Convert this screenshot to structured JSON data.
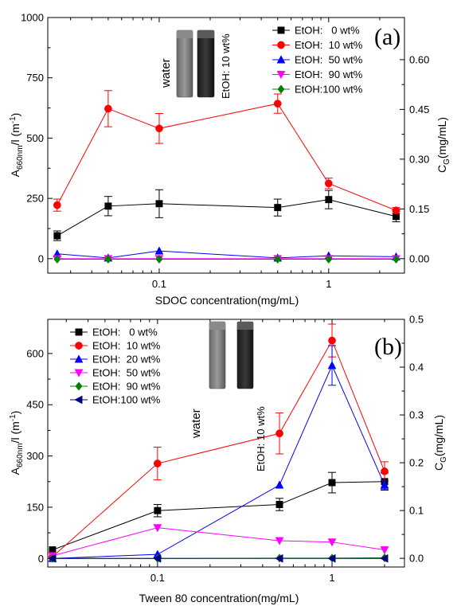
{
  "chart_data": [
    {
      "type": "line",
      "panel_label": "(a)",
      "xlabel": "SDOC concentration(mg/mL)",
      "ylabel_main": "A",
      "ylabel_sub": "660nm",
      "ylabel_rest": "/l (m",
      "ylabel_sup": "-1",
      "ylabel_close": ")",
      "ylabel_right_main": "C",
      "ylabel_right_sub": "G",
      "ylabel_right_rest": "(mg/mL)",
      "xscale": "log",
      "xlim": [
        0.022,
        2.8
      ],
      "ylim": [
        -60,
        1000
      ],
      "y2lim": [
        -0.0436,
        0.727
      ],
      "xticks": [
        {
          "v": 0.1,
          "label": "0.1"
        },
        {
          "v": 1,
          "label": "1"
        }
      ],
      "yticks": [
        {
          "v": 0,
          "label": "0"
        },
        {
          "v": 250,
          "label": "250"
        },
        {
          "v": 500,
          "label": "500"
        },
        {
          "v": 750,
          "label": "750"
        },
        {
          "v": 1000,
          "label": "1000"
        }
      ],
      "y2ticks": [
        {
          "v": 0,
          "label": "0.00"
        },
        {
          "v": 0.15,
          "label": "0.15"
        },
        {
          "v": 0.3,
          "label": "0.30"
        },
        {
          "v": 0.45,
          "label": "0.45"
        },
        {
          "v": 0.6,
          "label": "0.60"
        }
      ],
      "legend_position": "top-right",
      "inset": {
        "left_label": "water",
        "right_label": "EtOH: 10 wt%"
      },
      "x": [
        0.025,
        0.05,
        0.1,
        0.5,
        1,
        2.5
      ],
      "series": [
        {
          "name": "EtOH:   0 wt%",
          "color": "#000000",
          "marker": "square",
          "values": [
            95,
            218,
            228,
            212,
            245,
            175
          ],
          "errors": [
            20,
            40,
            58,
            35,
            38,
            22
          ]
        },
        {
          "name": "EtOH:  10 wt%",
          "color": "#ff0000",
          "marker": "circle",
          "values": [
            222,
            622,
            540,
            643,
            312,
            200
          ],
          "errors": [
            25,
            75,
            62,
            40,
            22,
            12
          ]
        },
        {
          "name": "EtOH:  50 wt%",
          "color": "#0000ff",
          "marker": "triangle-up",
          "values": [
            20,
            3,
            32,
            3,
            12,
            8
          ],
          "errors": [
            0,
            0,
            0,
            0,
            0,
            0
          ]
        },
        {
          "name": "EtOH:  90 wt%",
          "color": "#ff00ff",
          "marker": "triangle-down",
          "values": [
            0,
            0,
            0,
            0,
            0,
            0
          ],
          "errors": [
            0,
            0,
            0,
            0,
            0,
            0
          ]
        },
        {
          "name": "EtOH:100 wt%",
          "color": "#008000",
          "marker": "diamond",
          "values": [
            -2,
            -2,
            -2,
            -2,
            -2,
            -2
          ],
          "errors": [
            0,
            0,
            0,
            0,
            0,
            0
          ]
        }
      ]
    },
    {
      "type": "line",
      "panel_label": "(b)",
      "xlabel": "Tween 80 concentration(mg/mL)",
      "ylabel_main": "A",
      "ylabel_sub": "660nm",
      "ylabel_rest": "/l (m",
      "ylabel_sup": "-1",
      "ylabel_close": ")",
      "ylabel_right_main": "C",
      "ylabel_right_sub": "G",
      "ylabel_right_rest": "(mg/mL)",
      "xscale": "log",
      "xlim": [
        0.0235,
        2.6
      ],
      "ylim": [
        -25,
        700
      ],
      "y2lim": [
        -0.0181,
        0.5
      ],
      "xticks": [
        {
          "v": 0.1,
          "label": "0.1"
        },
        {
          "v": 1,
          "label": "1"
        }
      ],
      "yticks": [
        {
          "v": 0,
          "label": "0"
        },
        {
          "v": 150,
          "label": "150"
        },
        {
          "v": 300,
          "label": "300"
        },
        {
          "v": 450,
          "label": "450"
        },
        {
          "v": 600,
          "label": "600"
        }
      ],
      "y2ticks": [
        {
          "v": 0,
          "label": "0.0"
        },
        {
          "v": 0.1,
          "label": "0.1"
        },
        {
          "v": 0.2,
          "label": "0.2"
        },
        {
          "v": 0.3,
          "label": "0.3"
        },
        {
          "v": 0.4,
          "label": "0.4"
        },
        {
          "v": 0.5,
          "label": "0.5"
        }
      ],
      "legend_position": "top-left",
      "inset": {
        "left_label": "water",
        "right_label": "EtOH: 10 wt%"
      },
      "x": [
        0.025,
        0.1,
        0.5,
        1,
        2
      ],
      "series": [
        {
          "name": "EtOH:   0 wt%",
          "color": "#000000",
          "marker": "square",
          "values": [
            25,
            140,
            158,
            222,
            225
          ],
          "errors": [
            0,
            18,
            18,
            30,
            25
          ]
        },
        {
          "name": "EtOH:  10 wt%",
          "color": "#ff0000",
          "marker": "circle",
          "values": [
            5,
            278,
            366,
            638,
            255
          ],
          "errors": [
            0,
            48,
            60,
            48,
            28
          ]
        },
        {
          "name": "EtOH:  20 wt%",
          "color": "#0000ff",
          "marker": "triangle-up",
          "values": [
            0,
            12,
            215,
            565,
            215
          ],
          "errors": [
            0,
            0,
            0,
            58,
            12
          ]
        },
        {
          "name": "EtOH:  50 wt%",
          "color": "#ff00ff",
          "marker": "triangle-down",
          "values": [
            8,
            90,
            52,
            48,
            25
          ],
          "errors": [
            0,
            0,
            0,
            0,
            0
          ]
        },
        {
          "name": "EtOH:  90 wt%",
          "color": "#008000",
          "marker": "diamond",
          "values": [
            0,
            0,
            1,
            1,
            2
          ],
          "errors": [
            0,
            0,
            0,
            0,
            0
          ]
        },
        {
          "name": "EtOH:100 wt%",
          "color": "#000080",
          "marker": "triangle-left",
          "values": [
            0,
            0,
            0,
            0,
            0
          ],
          "errors": [
            0,
            0,
            0,
            0,
            0
          ]
        }
      ]
    }
  ]
}
